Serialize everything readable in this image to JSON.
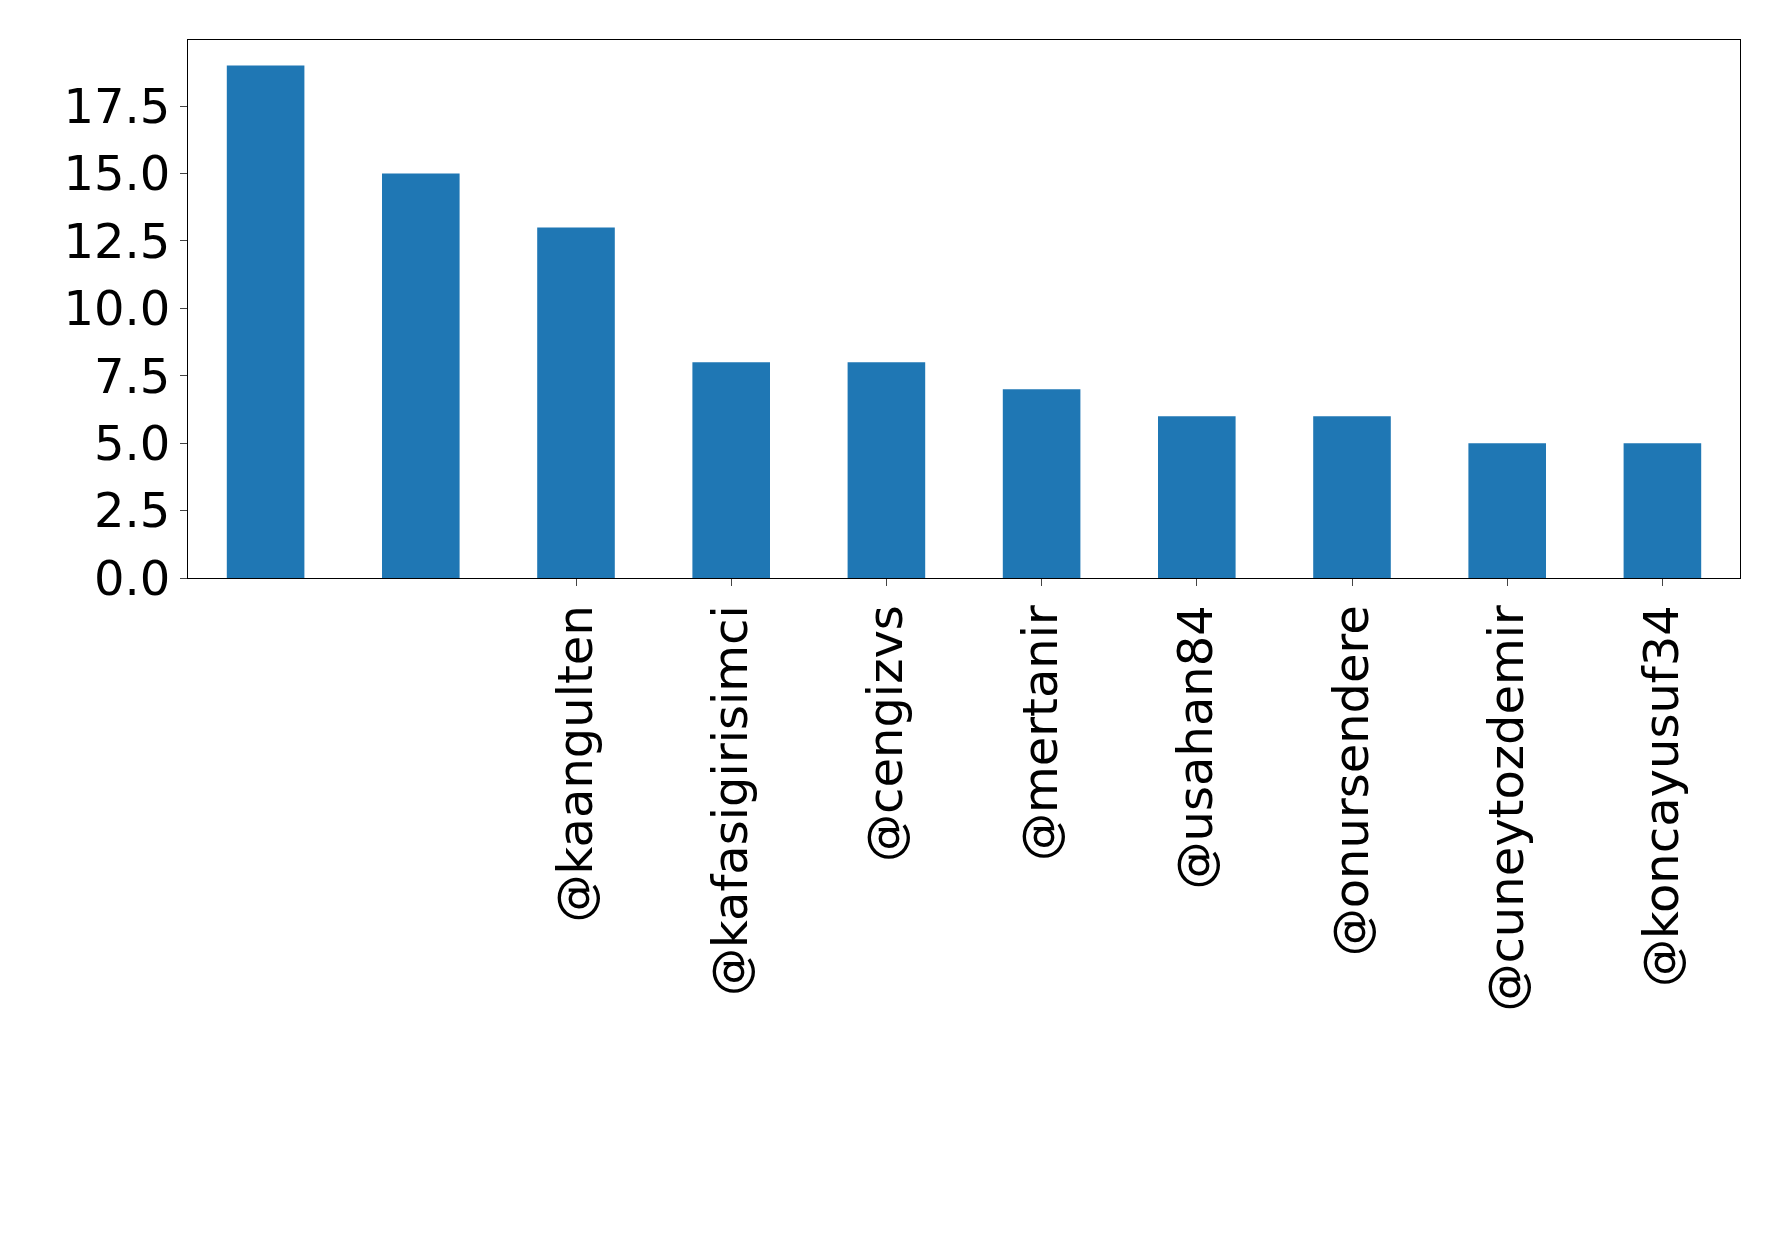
{
  "chart_data": {
    "type": "bar",
    "categories": [
      null,
      null,
      "@kaangulten",
      "@kafasigirisimci",
      "@cengizvs",
      "@mertanir",
      "@usahan84",
      "@onursendere",
      "@cuneytozdemir",
      "@koncayusuf34"
    ],
    "values": [
      19,
      15,
      13,
      8,
      8,
      7,
      6,
      6,
      5,
      5
    ],
    "color": "#1f77b4",
    "ylim": [
      0,
      19.95
    ],
    "yticks": [
      {
        "value": 0,
        "label": "0.0"
      },
      {
        "value": 2.5,
        "label": "2.5"
      },
      {
        "value": 5,
        "label": "5.0"
      },
      {
        "value": 7.5,
        "label": "7.5"
      },
      {
        "value": 10,
        "label": "10.0"
      },
      {
        "value": 12.5,
        "label": "12.5"
      },
      {
        "value": 15,
        "label": "15.0"
      },
      {
        "value": 17.5,
        "label": "17.5"
      }
    ],
    "grid": false,
    "legend": false
  }
}
